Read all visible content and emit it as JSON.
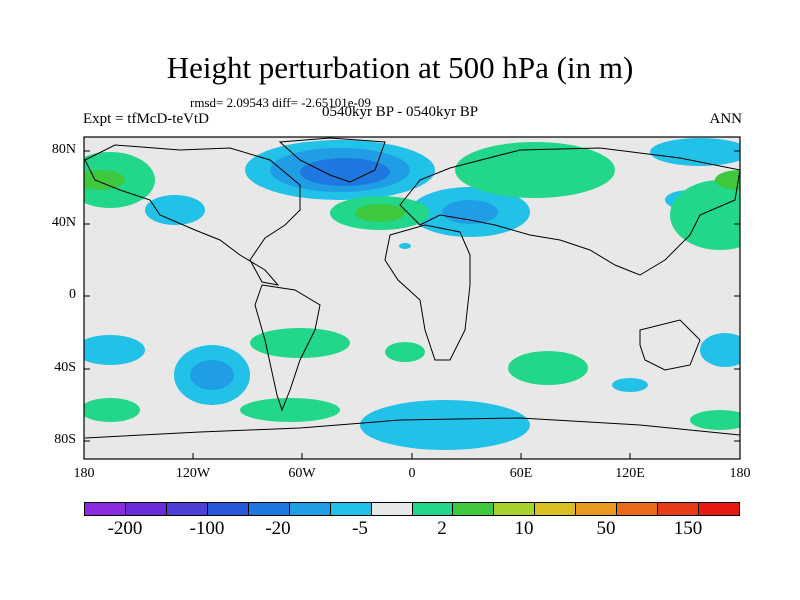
{
  "title": "Height perturbation at 500 hPa (in m)",
  "stats": "rmsd= 2.09543 diff= -2.65101e-09",
  "left_label": "Expt = tfMcD-teVtD",
  "center_label": "0540kyr BP - 0540kyr BP",
  "right_label": "ANN",
  "y_ticks": [
    "80N",
    "40N",
    "0",
    "40S",
    "80S"
  ],
  "x_ticks": [
    "180",
    "120W",
    "60W",
    "0",
    "60E",
    "120E",
    "180"
  ],
  "colorbar": {
    "colors": [
      "#8a2be2",
      "#6a2bd9",
      "#4b3fd6",
      "#2a56d9",
      "#1e78e0",
      "#1f9ee6",
      "#22c1e8",
      "#e8e8e8",
      "#22d68a",
      "#3dc83d",
      "#a6d22b",
      "#d8c022",
      "#e89a1e",
      "#e86a1a",
      "#e83a16",
      "#e81a12"
    ],
    "labels": [
      "-200",
      "-100",
      "-20",
      "-5",
      "2",
      "10",
      "50",
      "150"
    ]
  },
  "colors": {
    "ocean_background": "#e8e8e8",
    "negative_light": "#22c1e8",
    "negative_mid": "#1f9ee6",
    "negative_strong": "#1e78e0",
    "positive_light": "#22d68a",
    "positive_mid": "#3dc83d"
  }
}
